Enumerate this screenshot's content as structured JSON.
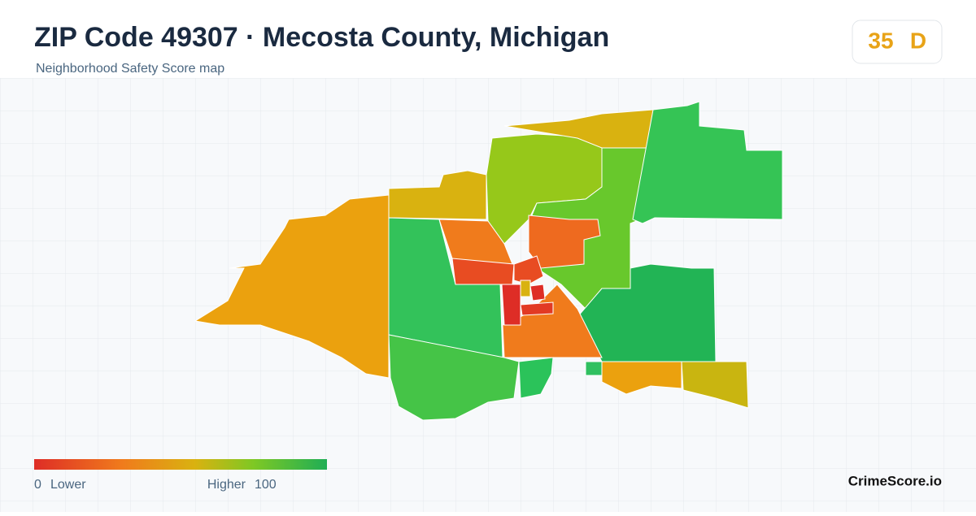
{
  "header": {
    "title": "ZIP Code 49307 · Mecosta County, Michigan",
    "subtitle": "Neighborhood Safety Score map"
  },
  "score": {
    "value": "35",
    "grade": "D"
  },
  "legend": {
    "min": "0",
    "min_label": "Lower",
    "max_label": "Higher",
    "max": "100"
  },
  "footer": {
    "brand": "CrimeScore.io"
  }
}
